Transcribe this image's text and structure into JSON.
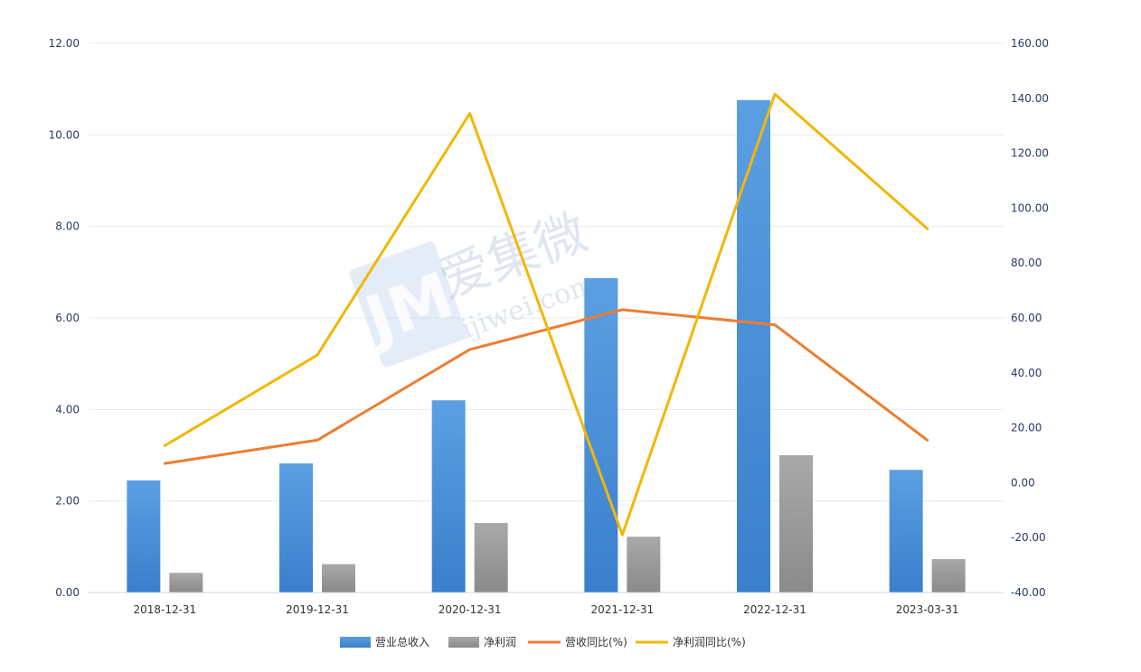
{
  "chart_data": {
    "type": "bar",
    "categories": [
      "2018-12-31",
      "2019-12-31",
      "2020-12-31",
      "2021-12-31",
      "2022-12-31",
      "2023-03-31"
    ],
    "series": [
      {
        "name": "营业总收入",
        "type": "bar",
        "axis": "left",
        "color": "#4a90d9",
        "values": [
          2.45,
          2.82,
          4.2,
          6.87,
          10.76,
          2.68
        ]
      },
      {
        "name": "净利润",
        "type": "bar",
        "axis": "left",
        "color": "#9e9e9e",
        "values": [
          0.43,
          0.62,
          1.52,
          1.22,
          3.0,
          0.73
        ]
      },
      {
        "name": "营收同比(%)",
        "type": "line",
        "axis": "right",
        "color": "#ed7d31",
        "values": [
          7,
          15.5,
          48.5,
          63,
          57.5,
          15.5
        ]
      },
      {
        "name": "净利润同比(%)",
        "type": "line",
        "axis": "right",
        "color": "#f2b705",
        "values": [
          13.5,
          46.5,
          134.5,
          -19,
          141.5,
          92.5
        ]
      }
    ],
    "y_left": {
      "min": 0,
      "max": 12,
      "step": 2,
      "tick_labels": [
        "0.00",
        "2.00",
        "4.00",
        "6.00",
        "8.00",
        "10.00",
        "12.00"
      ]
    },
    "y_right": {
      "min": -40,
      "max": 160,
      "step": 20,
      "tick_labels": [
        "-40.00",
        "-20.00",
        "0.00",
        "20.00",
        "40.00",
        "60.00",
        "80.00",
        "100.00",
        "120.00",
        "140.00",
        "160.00"
      ]
    },
    "grid": true,
    "legend": "bottom-center",
    "watermark": {
      "brand": "爱集微",
      "site": "ijiwei.com",
      "logo_letters": "JM"
    }
  }
}
